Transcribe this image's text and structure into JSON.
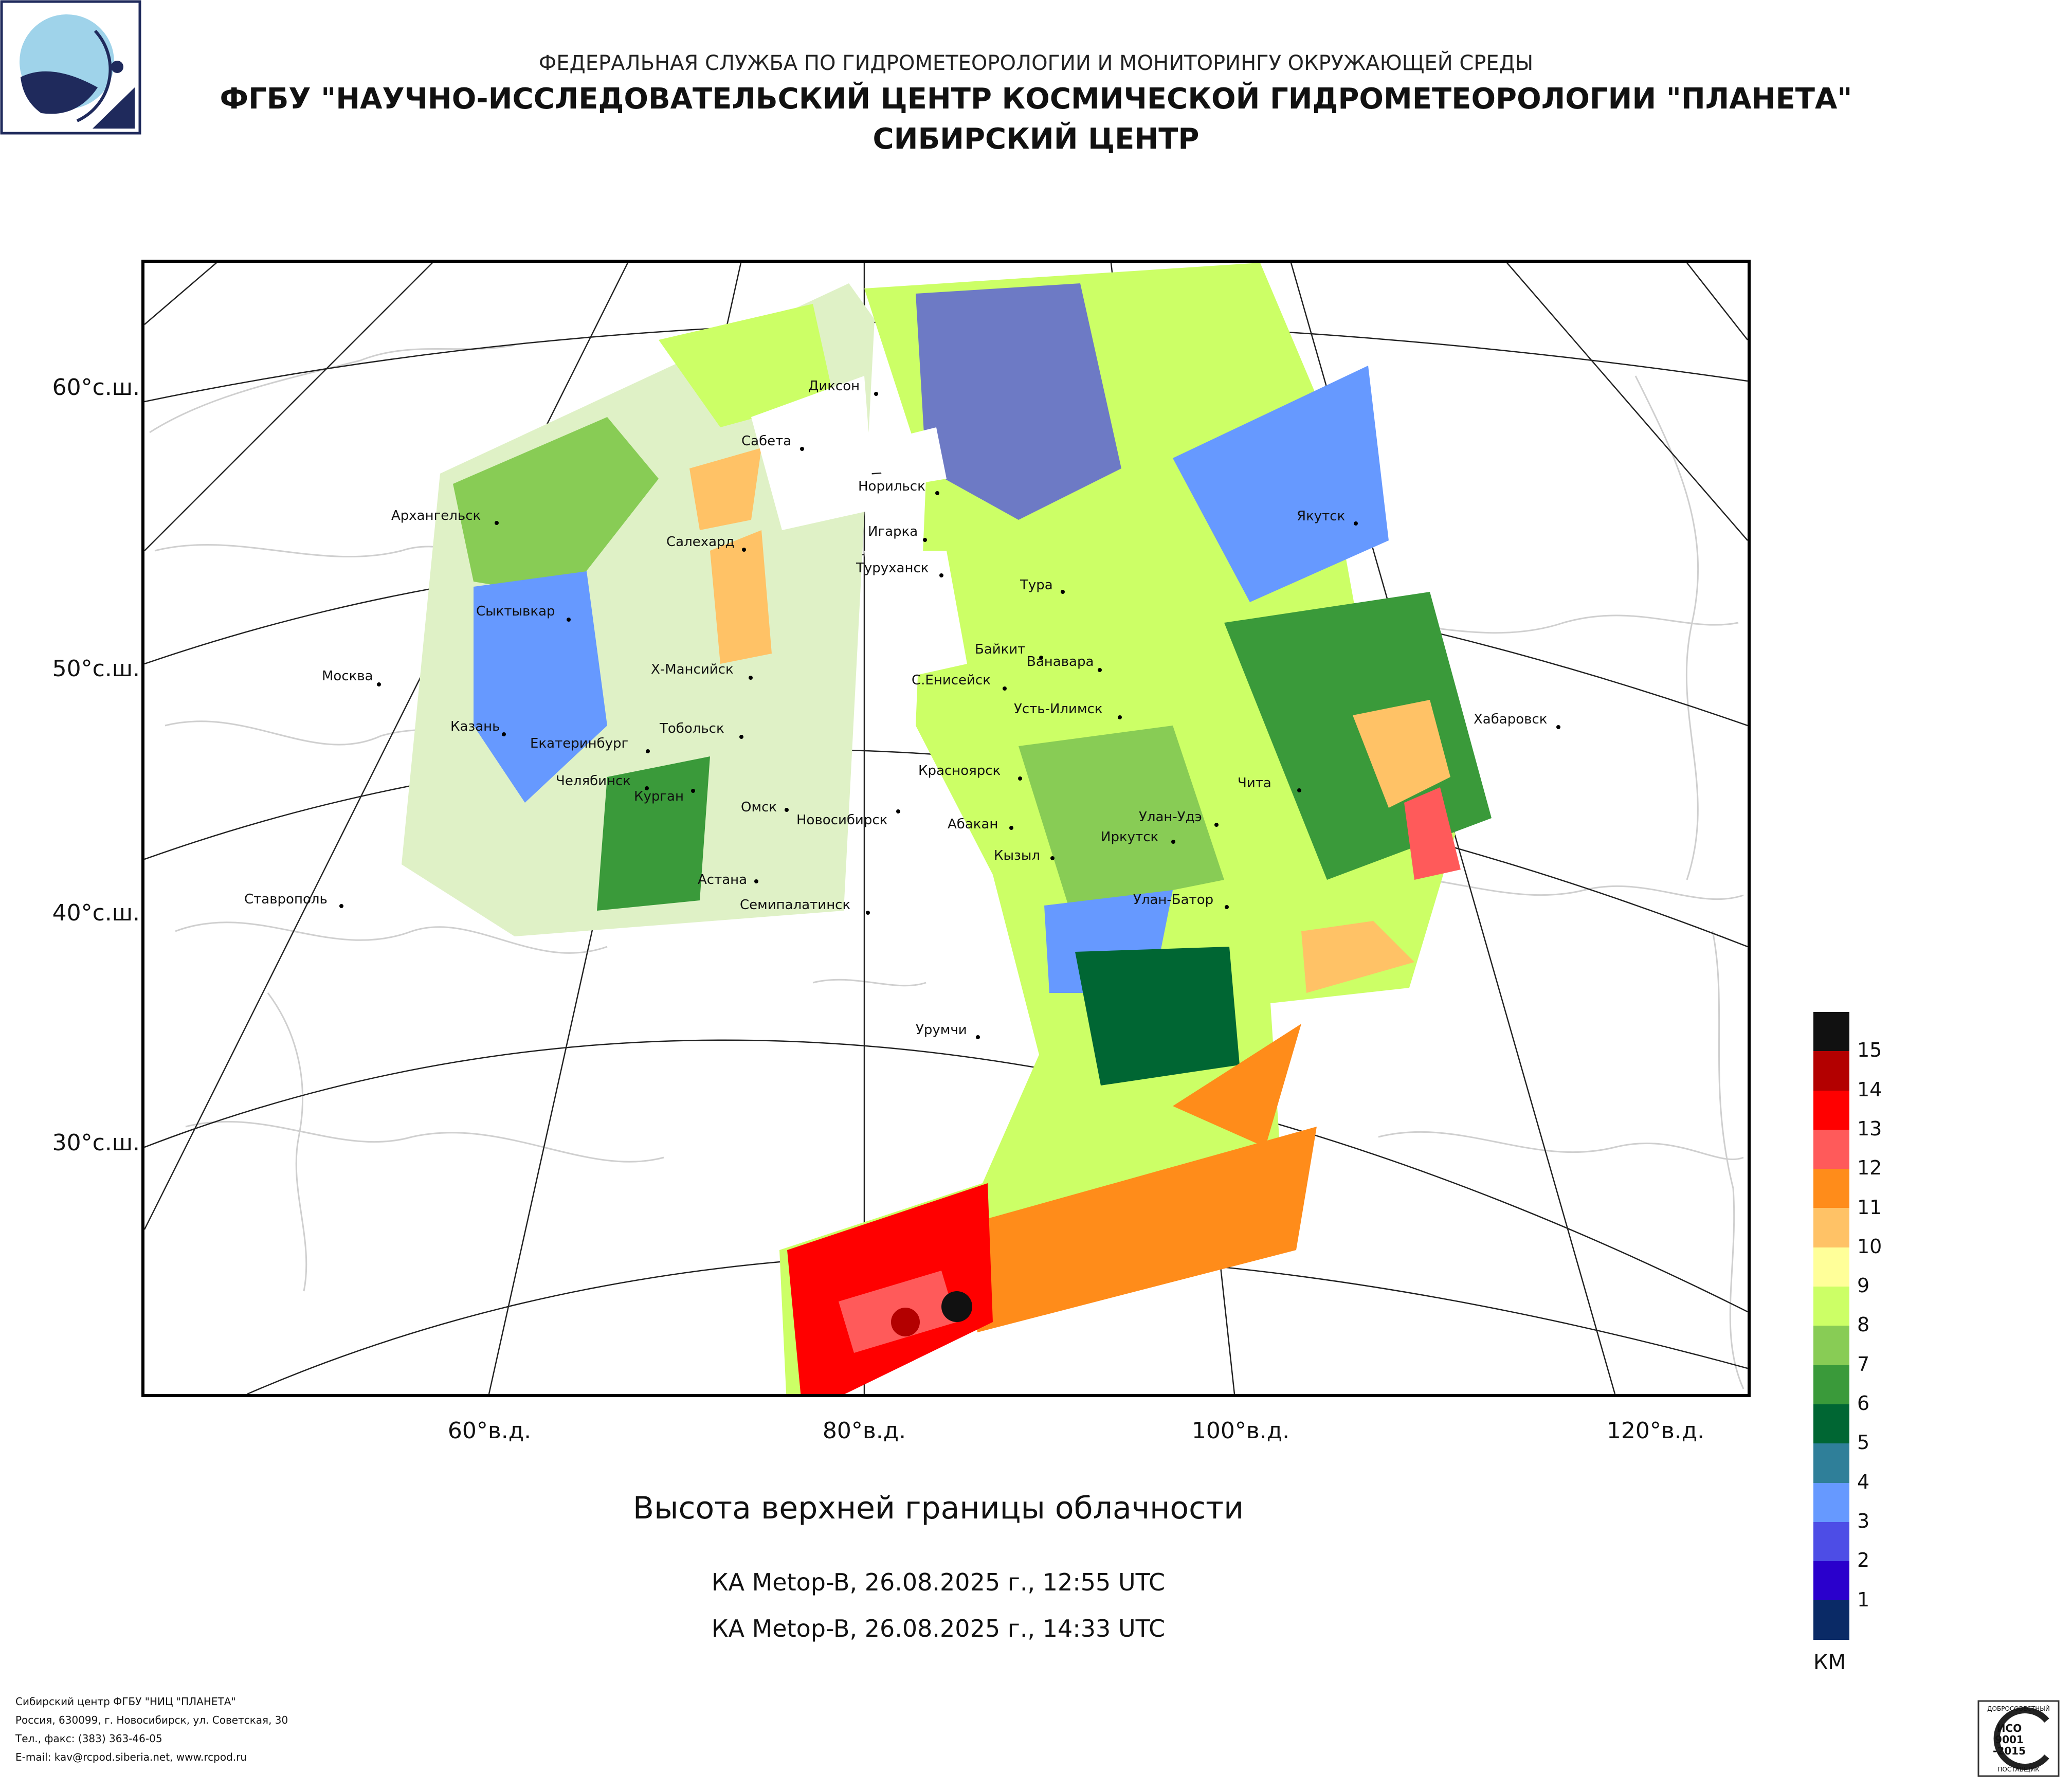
{
  "header": {
    "line1": "ФЕДЕРАЛЬНАЯ СЛУЖБА ПО ГИДРОМЕТЕОРОЛОГИИ И МОНИТОРИНГУ ОКРУЖАЮЩЕЙ СРЕДЫ",
    "line2": "ФГБУ \"НАУЧНО-ИССЛЕДОВАТЕЛЬСКИЙ ЦЕНТР КОСМИЧЕСКОЙ ГИДРОМЕТЕОРОЛОГИИ \"ПЛАНЕТА\"",
    "line3": "СИБИРСКИЙ ЦЕНТР"
  },
  "logo": {
    "icon": "planeta-logo-icon",
    "colors": [
      "#8ecae6",
      "#1f2a5c"
    ]
  },
  "map": {
    "lat_labels": [
      "60°с.ш.",
      "50°с.ш.",
      "40°с.ш.",
      "30°с.ш."
    ],
    "lon_labels": [
      "60°в.д.",
      "80°в.д.",
      "100°в.д.",
      "120°в.д."
    ],
    "cities": [
      "Диксон",
      "Сабета",
      "Норильск",
      "Архангельск",
      "Салехард",
      "Игарка",
      "Туруханск",
      "Якутск",
      "Тура",
      "Сыктывкар",
      "Байкит",
      "Ванавара",
      "Москва",
      "Х-Мансийск",
      "С.Енисейск",
      "Усть-Илимск",
      "Хабаровск",
      "Казань",
      "Тобольск",
      "Екатеринбург",
      "Челябинск",
      "Красноярск",
      "Чита",
      "Курган",
      "Омск",
      "Новосибирск",
      "Абакан",
      "Улан-Удэ",
      "Иркутск",
      "Кызыл",
      "Астана",
      "Ставрополь",
      "Семипалатинск",
      "Улан-Батор",
      "Урумчи"
    ]
  },
  "title": "Высота верхней границы облачности",
  "passes": [
    "КА Metop-B, 26.08.2025 г., 12:55 UTC",
    "КА Metop-B, 26.08.2025 г., 14:33 UTC"
  ],
  "legend": {
    "unit": "КМ",
    "ticks": [
      "15",
      "14",
      "13",
      "12",
      "11",
      "10",
      "9",
      "8",
      "7",
      "6",
      "5",
      "4",
      "3",
      "2",
      "1"
    ],
    "colors": [
      "#111111",
      "#b30000",
      "#ff0000",
      "#ff5a5a",
      "#ff8c1a",
      "#ffc266",
      "#ffff99",
      "#ccff66",
      "#88cc55",
      "#3a9a3a",
      "#006633",
      "#2f7f99",
      "#6699ff",
      "#4d4de6",
      "#2a00cc",
      "#0a2a66"
    ]
  },
  "footer": {
    "line1": "Сибирский центр ФГБУ \"НИЦ \"ПЛАНЕТА\"",
    "line2": "Россия, 630099, г. Новосибирск, ул. Советская, 30",
    "line3": "Тел., факс: (383) 363-46-05",
    "line4": "E-mail: kav@rcpod.siberia.net, www.rcpod.ru"
  },
  "stamp": {
    "text_top": "ДОБРОСОВЕСТНЫЙ",
    "text_mid1": "ИСО",
    "text_mid2": "9001",
    "text_mid3": "-2015",
    "text_bottom": "ПОСТАВЩИК"
  }
}
